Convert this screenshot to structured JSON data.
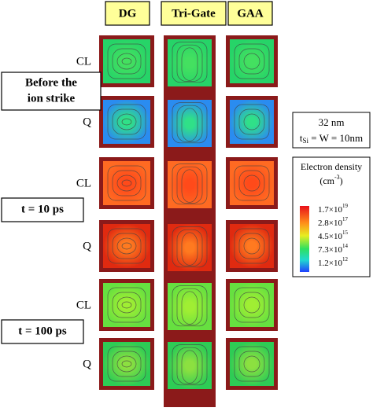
{
  "columns": [
    "DG",
    "Tri-Gate",
    "GAA"
  ],
  "row_labels": [
    "CL",
    "Q",
    "CL",
    "Q",
    "CL",
    "Q"
  ],
  "groups": [
    {
      "lines": [
        "Before the",
        "ion strike"
      ]
    },
    {
      "lines": [
        "t = 10 ps"
      ]
    },
    {
      "lines": [
        "t = 100 ps"
      ]
    }
  ],
  "device": {
    "node": "32 nm",
    "t": "t",
    "sub": "Si",
    "rest": " = W = 10nm"
  },
  "legend": {
    "title": "Electron density",
    "unit_open": "(cm",
    "unit_exp": "-3",
    "unit_close": ")",
    "labels": [
      {
        "base": "1.7×10",
        "exp": "19"
      },
      {
        "base": "2.8×10",
        "exp": "17"
      },
      {
        "base": "4.5×10",
        "exp": "15"
      },
      {
        "base": "7.3×10",
        "exp": "14"
      },
      {
        "base": "1.2×10",
        "exp": "12"
      }
    ]
  }
}
